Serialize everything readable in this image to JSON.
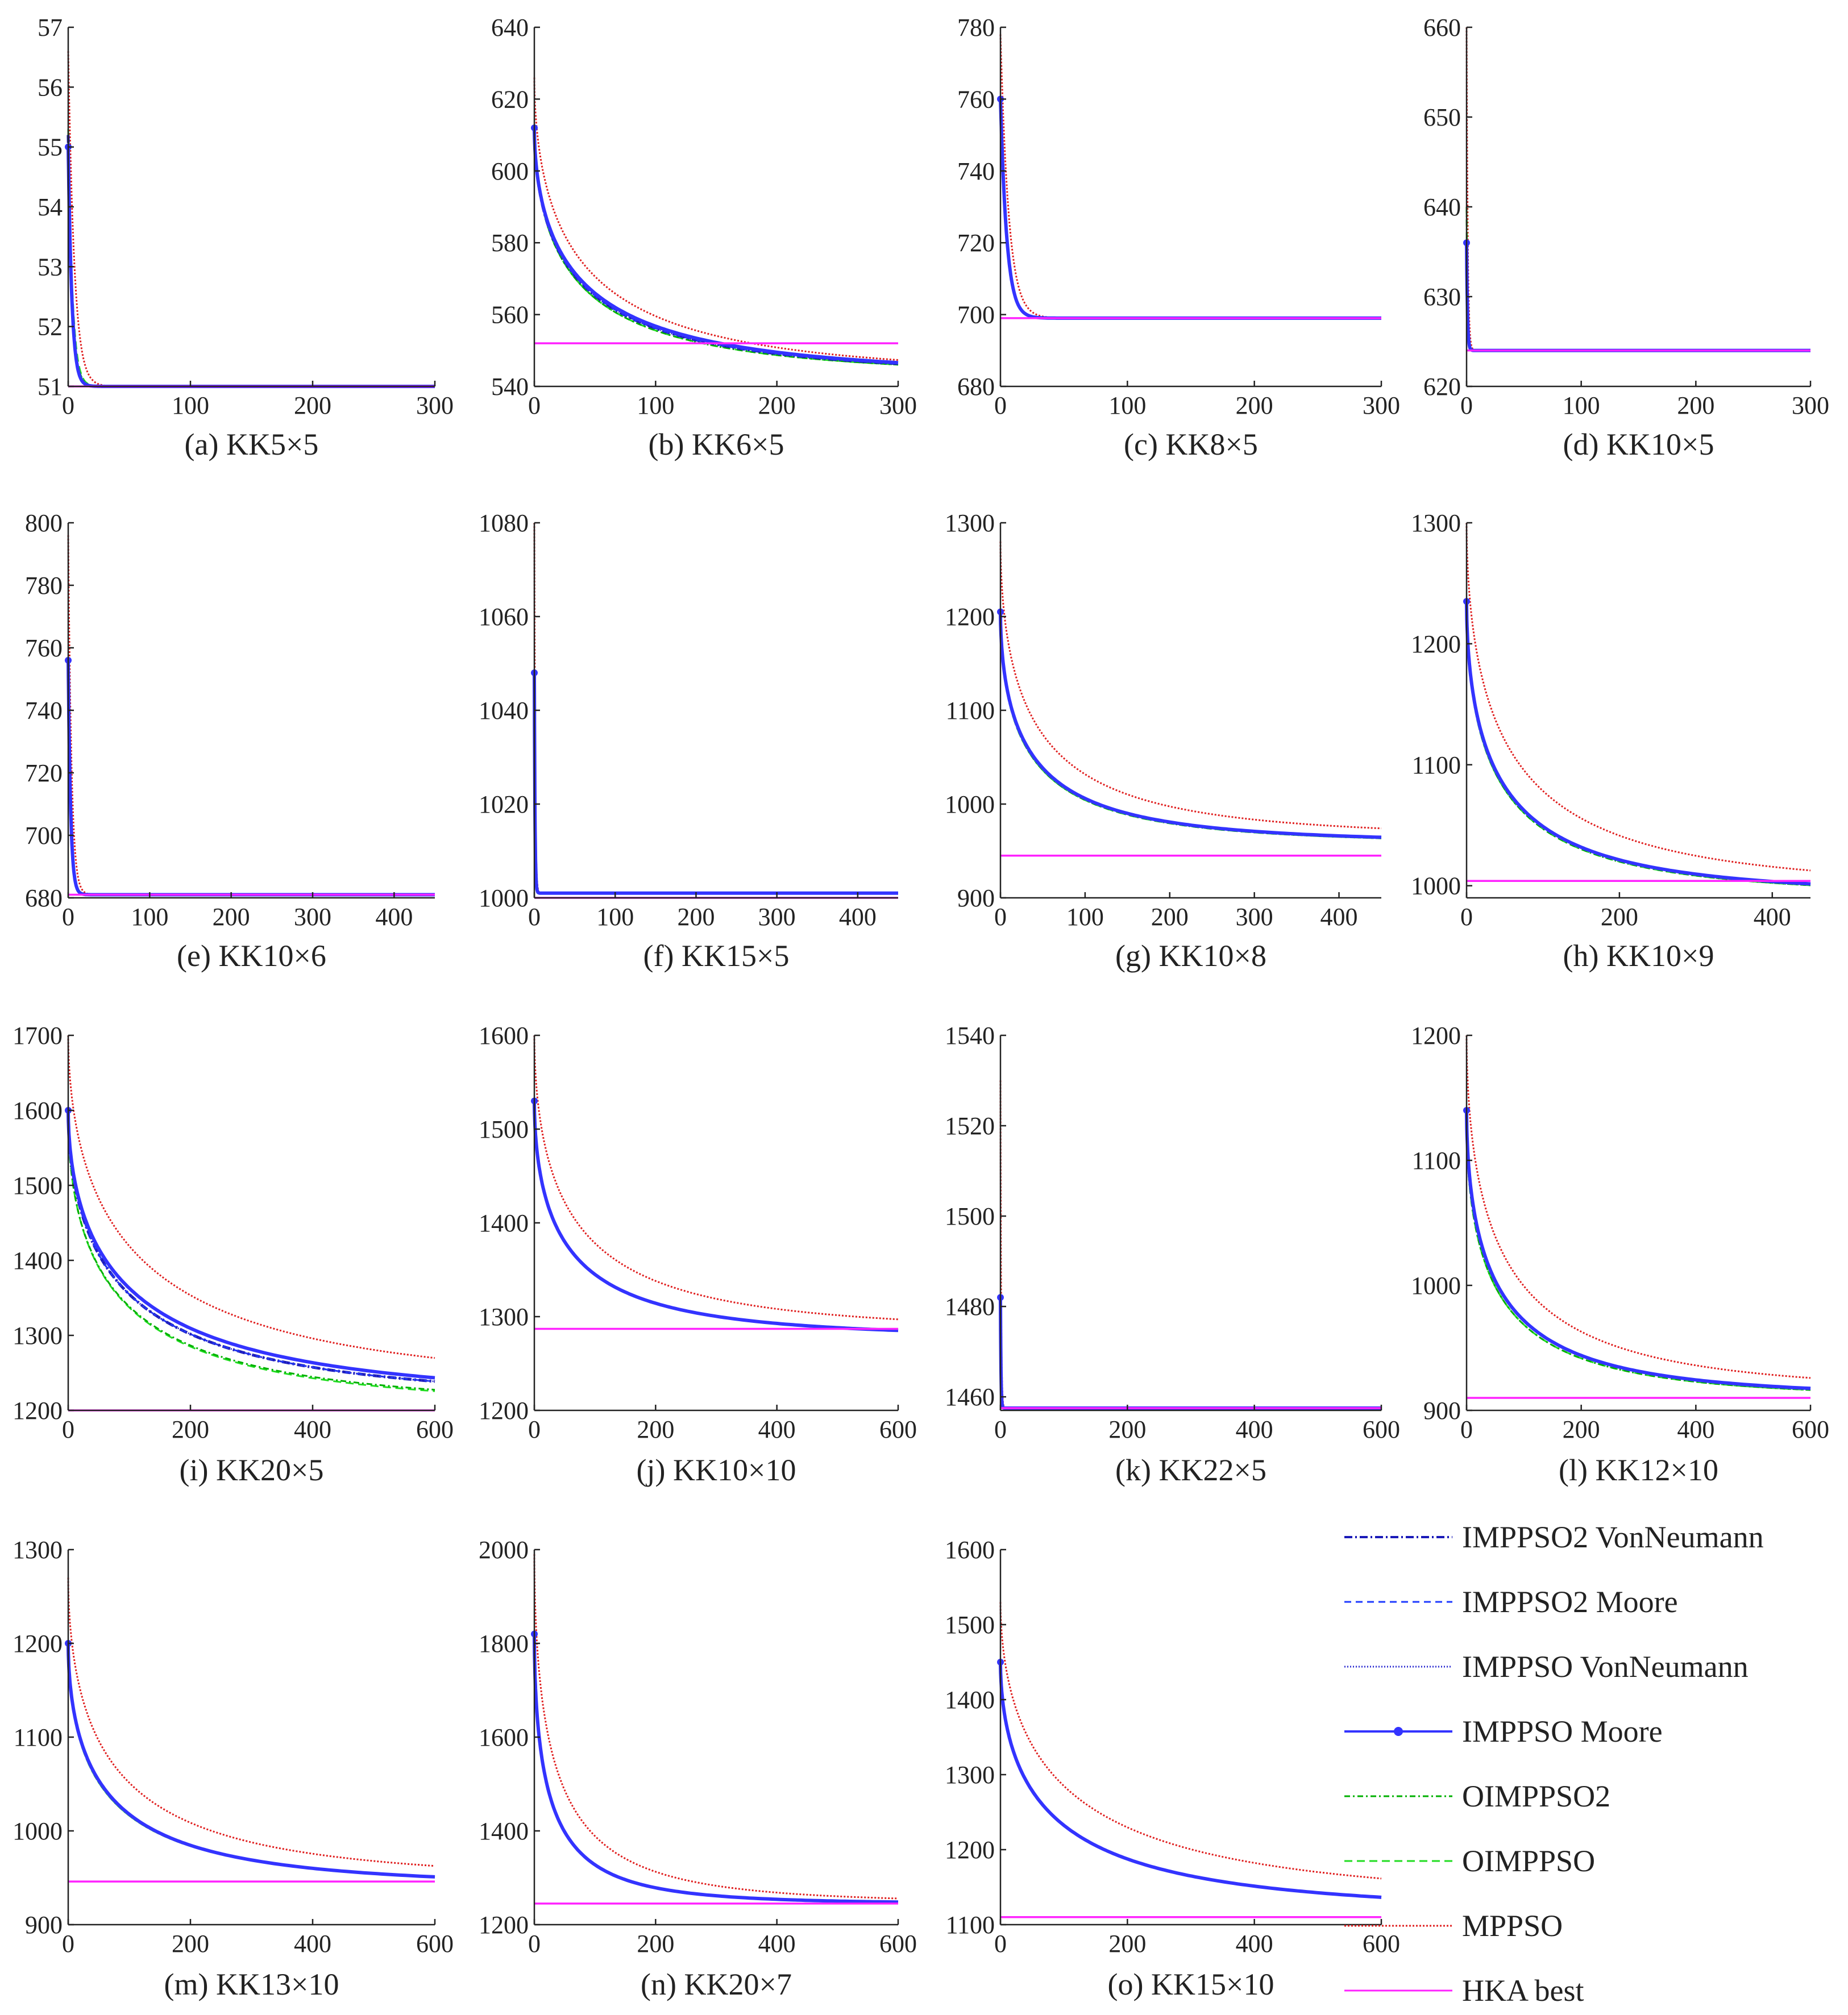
{
  "legend": [
    {
      "name": "IMPPSO2 VonNeumann",
      "color": "#1a1ab8",
      "dash": "14,5,3,5",
      "marker": "none"
    },
    {
      "name": "IMPPSO2 Moore",
      "color": "#1f3bff",
      "dash": "12,8",
      "marker": "none"
    },
    {
      "name": "IMPPSO VonNeumann",
      "color": "#2a2ad0",
      "dash": "2,3",
      "marker": "none"
    },
    {
      "name": "IMPPSO Moore",
      "color": "#3333ff",
      "dash": "",
      "marker": "dot"
    },
    {
      "name": "OIMPPSO2",
      "color": "#00b000",
      "dash": "10,5,3,5",
      "marker": "none"
    },
    {
      "name": "OIMPPSO",
      "color": "#22dd22",
      "dash": "14,8",
      "marker": "none"
    },
    {
      "name": "MPPSO",
      "color": "#e02020",
      "dash": "3,3",
      "marker": "none"
    },
    {
      "name": "HKA best",
      "color": "#ff22ff",
      "dash": "",
      "marker": "none"
    }
  ],
  "chart_data": [
    {
      "type": "line",
      "caption": "(a) KK5×5",
      "xlim": [
        0,
        300
      ],
      "ylim": [
        51,
        57
      ],
      "xticks": [
        0,
        100,
        200,
        300
      ],
      "yticks": [
        51,
        52,
        53,
        54,
        55,
        56,
        57
      ],
      "x0": 0,
      "x_end": 300,
      "start": [
        55.2,
        55.0,
        55.0,
        55.0,
        54.5,
        55.3,
        56.6
      ],
      "final": [
        51,
        51,
        51,
        51,
        51,
        51,
        51
      ],
      "tau": [
        3,
        3,
        3,
        3,
        3.5,
        3.5,
        5
      ],
      "shape": 1,
      "hka": 51.0
    },
    {
      "type": "line",
      "caption": "(b) KK6×5",
      "xlim": [
        0,
        300
      ],
      "ylim": [
        540,
        640
      ],
      "xticks": [
        0,
        100,
        200,
        300
      ],
      "yticks": [
        540,
        560,
        580,
        600,
        620,
        640
      ],
      "x0": 0,
      "x_end": 300,
      "start": [
        612,
        612,
        612,
        612,
        612,
        612,
        626
      ],
      "final": [
        543,
        543,
        543,
        543,
        543,
        543,
        543
      ],
      "tau": [
        40,
        40,
        40,
        42,
        38,
        38,
        42
      ],
      "shape": 0.55,
      "hka": 552
    },
    {
      "type": "line",
      "caption": "(c) KK8×5",
      "xlim": [
        0,
        300
      ],
      "ylim": [
        680,
        780
      ],
      "xticks": [
        0,
        100,
        200,
        300
      ],
      "yticks": [
        680,
        700,
        720,
        740,
        760,
        780
      ],
      "x0": 0,
      "x_end": 300,
      "start": [
        760,
        760,
        760,
        760,
        758,
        758,
        778
      ],
      "final": [
        699,
        699,
        699,
        699,
        699,
        699,
        699
      ],
      "tau": [
        5,
        5,
        5,
        5,
        5,
        5,
        6.5
      ],
      "shape": 1,
      "hka": 699
    },
    {
      "type": "line",
      "caption": "(d) KK10×5",
      "xlim": [
        0,
        300
      ],
      "ylim": [
        620,
        660
      ],
      "xticks": [
        0,
        100,
        200,
        300
      ],
      "yticks": [
        620,
        630,
        640,
        650,
        660
      ],
      "x0": 0,
      "x_end": 300,
      "start": [
        636,
        636,
        636,
        636,
        640,
        640,
        660
      ],
      "final": [
        624,
        624,
        624,
        624,
        624,
        624,
        624
      ],
      "tau": [
        0.8,
        0.8,
        0.8,
        0.8,
        0.8,
        0.8,
        1
      ],
      "shape": 1,
      "hka": 624
    },
    {
      "type": "line",
      "caption": "(e) KK10×6",
      "xlim": [
        0,
        450
      ],
      "ylim": [
        680,
        800
      ],
      "xticks": [
        0,
        100,
        200,
        300,
        400
      ],
      "yticks": [
        680,
        700,
        720,
        740,
        760,
        780,
        800
      ],
      "x0": 0,
      "x_end": 450,
      "start": [
        756,
        756,
        756,
        756,
        750,
        750,
        796
      ],
      "final": [
        681,
        681,
        681,
        681,
        681,
        681,
        681
      ],
      "tau": [
        3,
        3,
        3,
        3,
        3,
        3,
        4
      ],
      "shape": 1,
      "hka": 681
    },
    {
      "type": "line",
      "caption": "(f) KK15×5",
      "xlim": [
        0,
        450
      ],
      "ylim": [
        1000,
        1080
      ],
      "xticks": [
        0,
        100,
        200,
        300,
        400
      ],
      "yticks": [
        1000,
        1020,
        1040,
        1060,
        1080
      ],
      "x0": 0,
      "x_end": 450,
      "start": [
        1048,
        1048,
        1048,
        1048,
        1045,
        1045,
        1080
      ],
      "final": [
        1001,
        1001,
        1001,
        1001,
        1001,
        1001,
        1001
      ],
      "tau": [
        0.8,
        0.8,
        0.8,
        0.8,
        0.8,
        0.8,
        1
      ],
      "shape": 1,
      "hka": 1000
    },
    {
      "type": "line",
      "caption": "(g) KK10×8",
      "xlim": [
        0,
        450
      ],
      "ylim": [
        900,
        1300
      ],
      "xticks": [
        0,
        100,
        200,
        300,
        400
      ],
      "yticks": [
        900,
        1000,
        1100,
        1200,
        1300
      ],
      "x0": 0,
      "x_end": 450,
      "start": [
        1205,
        1205,
        1205,
        1205,
        1200,
        1200,
        1280
      ],
      "final": [
        959,
        959,
        959,
        959,
        958,
        958,
        965
      ],
      "tau": [
        40,
        40,
        40,
        40,
        40,
        40,
        45
      ],
      "shape": 0.55,
      "hka": 945
    },
    {
      "type": "line",
      "caption": "(h) KK10×9",
      "xlim": [
        0,
        450
      ],
      "ylim": [
        990,
        1300
      ],
      "xticks": [
        0,
        200,
        400
      ],
      "yticks": [
        1000,
        1100,
        1200,
        1300
      ],
      "x0": 0,
      "x_end": 450,
      "start": [
        1235,
        1235,
        1235,
        1235,
        1230,
        1230,
        1300
      ],
      "final": [
        993,
        993,
        993,
        993,
        992,
        992,
        998
      ],
      "tau": [
        50,
        50,
        50,
        50,
        50,
        50,
        60
      ],
      "shape": 0.55,
      "hka": 1004
    },
    {
      "type": "line",
      "caption": "(i) KK20×5",
      "xlim": [
        0,
        600
      ],
      "ylim": [
        1200,
        1700
      ],
      "xticks": [
        0,
        200,
        400,
        600
      ],
      "yticks": [
        1200,
        1300,
        1400,
        1500,
        1600,
        1700
      ],
      "x0": 0,
      "x_end": 600,
      "start": [
        1600,
        1600,
        1600,
        1600,
        1590,
        1590,
        1700
      ],
      "final": [
        1212,
        1212,
        1212,
        1213,
        1205,
        1203,
        1228
      ],
      "tau": [
        100,
        100,
        100,
        110,
        90,
        90,
        120
      ],
      "shape": 0.55,
      "hka": 1200
    },
    {
      "type": "line",
      "caption": "(j) KK10×10",
      "xlim": [
        0,
        600
      ],
      "ylim": [
        1200,
        1600
      ],
      "xticks": [
        0,
        200,
        400,
        600
      ],
      "yticks": [
        1200,
        1300,
        1400,
        1500,
        1600
      ],
      "x0": 0,
      "x_end": 600,
      "start": [
        1530,
        1530,
        1530,
        1530,
        1525,
        1525,
        1600
      ],
      "final": [
        1278,
        1278,
        1278,
        1278,
        1279,
        1279,
        1285
      ],
      "tau": [
        60,
        60,
        60,
        60,
        60,
        60,
        70
      ],
      "shape": 0.55,
      "hka": 1287
    },
    {
      "type": "line",
      "caption": "(k) KK22×5",
      "xlim": [
        0,
        600
      ],
      "ylim": [
        1457,
        1540
      ],
      "xticks": [
        0,
        200,
        400,
        600
      ],
      "yticks": [
        1460,
        1480,
        1500,
        1520,
        1540
      ],
      "x0": 0,
      "x_end": 600,
      "start": [
        1482,
        1482,
        1482,
        1482,
        1480,
        1480,
        1530
      ],
      "final": [
        1457.5,
        1457.5,
        1457.5,
        1457.5,
        1457.5,
        1457.5,
        1457.5
      ],
      "tau": [
        0.8,
        0.8,
        0.8,
        0.8,
        0.8,
        0.8,
        1
      ],
      "shape": 1,
      "hka": 1457.5
    },
    {
      "type": "line",
      "caption": "(l) KK12×10",
      "xlim": [
        0,
        600
      ],
      "ylim": [
        900,
        1200
      ],
      "xticks": [
        0,
        200,
        400,
        600
      ],
      "yticks": [
        900,
        1000,
        1100,
        1200
      ],
      "x0": 0,
      "x_end": 600,
      "start": [
        1140,
        1140,
        1140,
        1140,
        1130,
        1130,
        1200
      ],
      "final": [
        911,
        911,
        911,
        911,
        910,
        910,
        915
      ],
      "tau": [
        60,
        60,
        60,
        60,
        60,
        60,
        70
      ],
      "shape": 0.55,
      "hka": 910
    },
    {
      "type": "line",
      "caption": "(m) KK13×10",
      "xlim": [
        0,
        600
      ],
      "ylim": [
        900,
        1300
      ],
      "xticks": [
        0,
        200,
        400,
        600
      ],
      "yticks": [
        900,
        1000,
        1100,
        1200,
        1300
      ],
      "x0": 0,
      "x_end": 600,
      "start": [
        1200,
        1200,
        1200,
        1200,
        1195,
        1195,
        1270
      ],
      "final": [
        941,
        941,
        941,
        941,
        941,
        941,
        947
      ],
      "tau": [
        70,
        70,
        70,
        70,
        70,
        70,
        80
      ],
      "shape": 0.55,
      "hka": 946
    },
    {
      "type": "line",
      "caption": "(n) KK20×7",
      "xlim": [
        0,
        600
      ],
      "ylim": [
        1200,
        2000
      ],
      "xticks": [
        0,
        200,
        400,
        600
      ],
      "yticks": [
        1200,
        1400,
        1600,
        1800,
        2000
      ],
      "x0": 0,
      "x_end": 600,
      "start": [
        1820,
        1820,
        1820,
        1820,
        1810,
        1810,
        1990
      ],
      "final": [
        1245,
        1245,
        1245,
        1245,
        1245,
        1245,
        1247
      ],
      "tau": [
        30,
        30,
        30,
        30,
        30,
        30,
        40
      ],
      "shape": 0.55,
      "hka": 1245
    },
    {
      "type": "line",
      "caption": "(o) KK15×10",
      "xlim": [
        0,
        600
      ],
      "ylim": [
        1100,
        1600
      ],
      "xticks": [
        0,
        200,
        400,
        600
      ],
      "yticks": [
        1100,
        1200,
        1300,
        1400,
        1500,
        1600
      ],
      "x0": 0,
      "x_end": 600,
      "start": [
        1450,
        1450,
        1450,
        1450,
        1445,
        1445,
        1530
      ],
      "final": [
        1117,
        1117,
        1117,
        1117,
        1118,
        1118,
        1130
      ],
      "tau": [
        90,
        90,
        90,
        90,
        90,
        90,
        110
      ],
      "shape": 0.55,
      "hka": 1110
    }
  ]
}
